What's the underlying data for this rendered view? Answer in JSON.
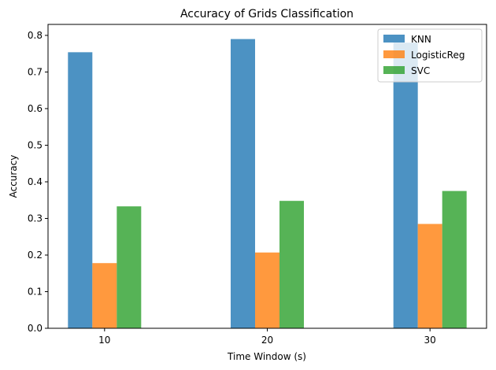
{
  "chart_data": {
    "type": "bar",
    "title": "Accuracy of Grids Classification",
    "xlabel": "Time Window (s)",
    "ylabel": "Accuracy",
    "categories": [
      "10",
      "20",
      "30"
    ],
    "ylim": [
      0,
      0.83
    ],
    "yticks": [
      "0.0",
      "0.1",
      "0.2",
      "0.3",
      "0.4",
      "0.5",
      "0.6",
      "0.7",
      "0.8"
    ],
    "series": [
      {
        "name": "KNN",
        "color": "#1f77b4",
        "values": [
          0.754,
          0.79,
          0.78
        ]
      },
      {
        "name": "LogisticReg",
        "color": "#ff7f0e",
        "values": [
          0.178,
          0.207,
          0.285
        ]
      },
      {
        "name": "SVC",
        "color": "#2ca02c",
        "values": [
          0.333,
          0.348,
          0.375
        ]
      }
    ],
    "grid": false,
    "legend_position": "top-right"
  }
}
